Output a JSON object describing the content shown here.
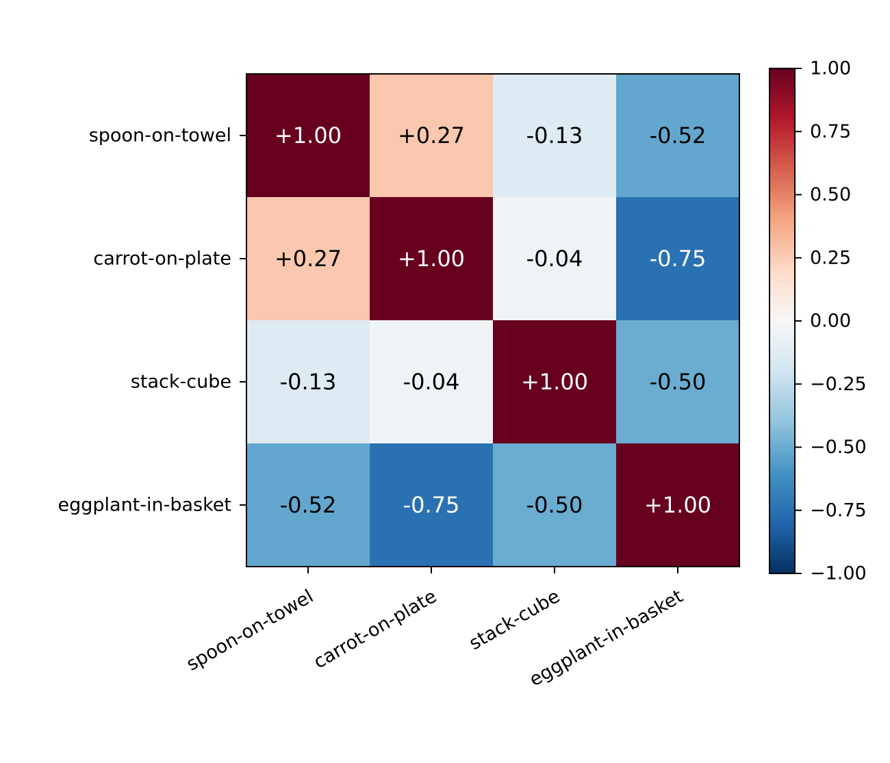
{
  "chart_data": {
    "type": "heatmap",
    "title": "",
    "xlabel": "",
    "ylabel": "",
    "x_categories": [
      "spoon-on-towel",
      "carrot-on-plate",
      "stack-cube",
      "eggplant-in-basket"
    ],
    "y_categories": [
      "spoon-on-towel",
      "carrot-on-plate",
      "stack-cube",
      "eggplant-in-basket"
    ],
    "values": [
      [
        1.0,
        0.27,
        -0.13,
        -0.52
      ],
      [
        0.27,
        1.0,
        -0.04,
        -0.75
      ],
      [
        -0.13,
        -0.04,
        1.0,
        -0.5
      ],
      [
        -0.52,
        -0.75,
        -0.5,
        1.0
      ]
    ],
    "cell_labels": [
      [
        "+1.00",
        "+0.27",
        "-0.13",
        "-0.52"
      ],
      [
        "+0.27",
        "+1.00",
        "-0.04",
        "-0.75"
      ],
      [
        "-0.13",
        "-0.04",
        "+1.00",
        "-0.50"
      ],
      [
        "-0.52",
        "-0.75",
        "-0.50",
        "+1.00"
      ]
    ],
    "colormap": "RdBu_r",
    "vmin": -1.0,
    "vmax": 1.0,
    "colorbar": {
      "ticks": [
        1.0,
        0.75,
        0.5,
        0.25,
        0.0,
        -0.25,
        -0.5,
        -0.75,
        -1.0
      ],
      "tick_labels": [
        "1.00",
        "0.75",
        "0.50",
        "0.25",
        "0.00",
        "−0.25",
        "−0.50",
        "−0.75",
        "−1.00"
      ],
      "placement": "right"
    },
    "grid": false
  }
}
